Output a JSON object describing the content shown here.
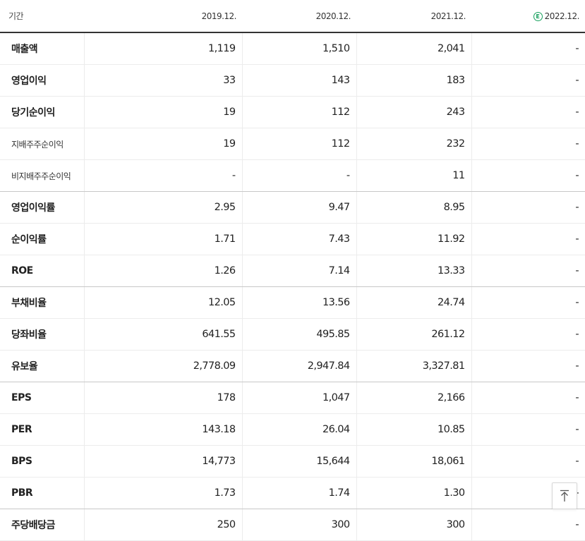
{
  "table": {
    "period_label": "기간",
    "columns": [
      "2019.12.",
      "2020.12.",
      "2021.12.",
      "2022.12."
    ],
    "estimate_badge": "E",
    "rows": [
      {
        "label": "매출액",
        "values": [
          "1,119",
          "1,510",
          "2,041",
          "-"
        ]
      },
      {
        "label": "영업이익",
        "values": [
          "33",
          "143",
          "183",
          "-"
        ]
      },
      {
        "label": "당기순이익",
        "values": [
          "19",
          "112",
          "243",
          "-"
        ]
      },
      {
        "label": "지배주주순이익",
        "values": [
          "19",
          "112",
          "232",
          "-"
        ]
      },
      {
        "label": "비지배주주순이익",
        "values": [
          "-",
          "-",
          "11",
          "-"
        ]
      },
      {
        "label": "영업이익률",
        "values": [
          "2.95",
          "9.47",
          "8.95",
          "-"
        ]
      },
      {
        "label": "순이익률",
        "values": [
          "1.71",
          "7.43",
          "11.92",
          "-"
        ]
      },
      {
        "label": "ROE",
        "values": [
          "1.26",
          "7.14",
          "13.33",
          "-"
        ]
      },
      {
        "label": "부채비율",
        "values": [
          "12.05",
          "13.56",
          "24.74",
          "-"
        ]
      },
      {
        "label": "당좌비율",
        "values": [
          "641.55",
          "495.85",
          "261.12",
          "-"
        ]
      },
      {
        "label": "유보율",
        "values": [
          "2,778.09",
          "2,947.84",
          "3,327.81",
          "-"
        ]
      },
      {
        "label": "EPS",
        "values": [
          "178",
          "1,047",
          "2,166",
          "-"
        ]
      },
      {
        "label": "PER",
        "values": [
          "143.18",
          "26.04",
          "10.85",
          "-"
        ]
      },
      {
        "label": "BPS",
        "values": [
          "14,773",
          "15,644",
          "18,061",
          "-"
        ]
      },
      {
        "label": "PBR",
        "values": [
          "1.73",
          "1.74",
          "1.30",
          "-"
        ]
      },
      {
        "label": "주당배당금",
        "values": [
          "250",
          "300",
          "300",
          "-"
        ]
      }
    ]
  },
  "scroll_top_icon": "arrow-up-to-line-icon"
}
